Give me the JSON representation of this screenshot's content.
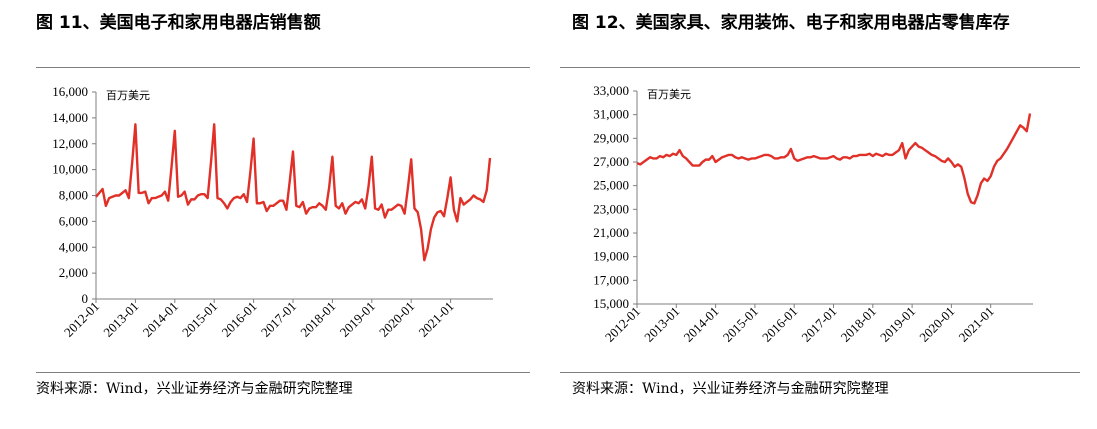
{
  "figures": [
    {
      "title": "图 11、美国电子和家用电器店销售额",
      "source": "资料来源：Wind，兴业证券经济与金融研究院整理",
      "chart_data": {
        "type": "line",
        "unit_label": "百万美元",
        "ylim": [
          0,
          16000
        ],
        "yticks": [
          "0",
          "2,000",
          "4,000",
          "6,000",
          "8,000",
          "10,000",
          "12,000",
          "14,000",
          "16,000"
        ],
        "ytick_values": [
          0,
          2000,
          4000,
          6000,
          8000,
          10000,
          12000,
          14000,
          16000
        ],
        "xtick_labels": [
          "2012-01",
          "2013-01",
          "2014-01",
          "2015-01",
          "2016-01",
          "2017-01",
          "2018-01",
          "2019-01",
          "2020-01",
          "2021-01"
        ],
        "x_start": "2012-01",
        "grid": false,
        "color": "#e03028",
        "series": [
          {
            "values": [
              7900,
              8200,
              8500,
              7200,
              7800,
              7900,
              8000,
              8000,
              8200,
              8400,
              7800,
              10500,
              13500,
              8200,
              8200,
              8300,
              7400,
              7800,
              7800,
              7900,
              8000,
              8300,
              7600,
              10200,
              13000,
              7900,
              8000,
              8300,
              7300,
              7700,
              7700,
              8000,
              8100,
              8100,
              7800,
              10500,
              13500,
              7800,
              7700,
              7400,
              7000,
              7500,
              7800,
              7900,
              7800,
              8100,
              7500,
              9800,
              12400,
              7400,
              7400,
              7500,
              6800,
              7200,
              7200,
              7400,
              7600,
              7600,
              6900,
              9100,
              11400,
              7200,
              7100,
              7500,
              6600,
              7000,
              7100,
              7100,
              7400,
              7200,
              6900,
              8600,
              11000,
              7200,
              7000,
              7400,
              6600,
              7100,
              7300,
              7500,
              7400,
              7700,
              7000,
              8700,
              11000,
              7000,
              6900,
              7300,
              6300,
              6900,
              6900,
              7100,
              7300,
              7200,
              6600,
              8600,
              10800,
              7000,
              6700,
              5400,
              3000,
              3900,
              5400,
              6300,
              6700,
              6800,
              6400,
              7800,
              9400,
              6900,
              6000,
              7800,
              7300,
              7500,
              7700,
              8000,
              7800,
              7700,
              7500,
              8400,
              10900
            ]
          }
        ]
      }
    },
    {
      "title": "图 12、美国家具、家用装饰、电子和家用电器店零售库存",
      "source": "资料来源：Wind，兴业证券经济与金融研究院整理",
      "chart_data": {
        "type": "line",
        "unit_label": "百万美元",
        "ylim": [
          15000,
          33000
        ],
        "yticks": [
          "15,000",
          "17,000",
          "19,000",
          "21,000",
          "23,000",
          "25,000",
          "27,000",
          "29,000",
          "31,000",
          "33,000"
        ],
        "ytick_values": [
          15000,
          17000,
          19000,
          21000,
          23000,
          25000,
          27000,
          29000,
          31000,
          33000
        ],
        "xtick_labels": [
          "2012-01",
          "2013-01",
          "2014-01",
          "2015-01",
          "2016-01",
          "2017-01",
          "2018-01",
          "2019-01",
          "2020-01",
          "2021-01"
        ],
        "x_start": "2012-01",
        "grid": false,
        "color": "#e03028",
        "series": [
          {
            "values": [
              26900,
              26800,
              27000,
              27200,
              27400,
              27300,
              27300,
              27500,
              27400,
              27600,
              27500,
              27700,
              27600,
              28000,
              27500,
              27300,
              27000,
              26700,
              26700,
              26700,
              27000,
              27200,
              27200,
              27500,
              27000,
              27200,
              27400,
              27500,
              27600,
              27600,
              27400,
              27300,
              27400,
              27300,
              27200,
              27300,
              27300,
              27400,
              27500,
              27600,
              27600,
              27500,
              27300,
              27300,
              27400,
              27400,
              27600,
              28100,
              27300,
              27100,
              27200,
              27300,
              27400,
              27400,
              27500,
              27400,
              27300,
              27300,
              27300,
              27400,
              27500,
              27300,
              27200,
              27400,
              27400,
              27300,
              27500,
              27500,
              27600,
              27600,
              27600,
              27700,
              27500,
              27700,
              27600,
              27500,
              27700,
              27600,
              27600,
              27800,
              28000,
              28600,
              27300,
              28000,
              28300,
              28600,
              28300,
              28200,
              28000,
              27800,
              27600,
              27500,
              27300,
              27100,
              27000,
              27300,
              27000,
              26600,
              26800,
              26600,
              25600,
              24300,
              23600,
              23500,
              24200,
              25200,
              25600,
              25400,
              25800,
              26600,
              27100,
              27300,
              27700,
              28100,
              28600,
              29100,
              29600,
              30100,
              29900,
              29600,
              31100
            ]
          }
        ]
      }
    }
  ]
}
